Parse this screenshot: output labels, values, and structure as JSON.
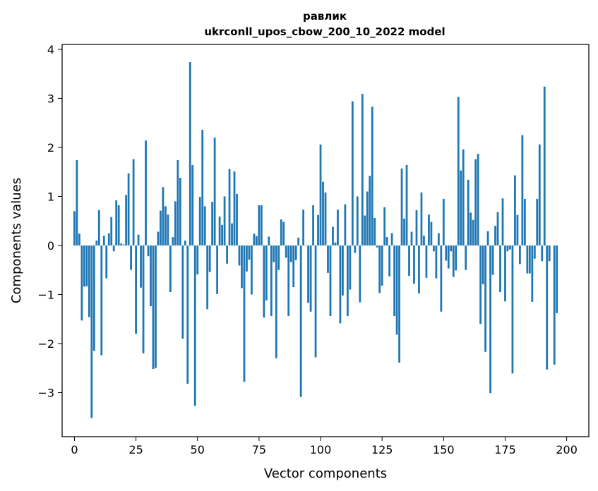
{
  "chart_data": {
    "type": "bar",
    "title": "равлик",
    "subtitle": "ukrconll_upos_cbow_200_10_2022 model",
    "xlabel": "Vector components",
    "ylabel": "Components values",
    "xlim": [
      -5,
      209
    ],
    "ylim": [
      -3.9,
      4.1
    ],
    "xticks": [
      0,
      25,
      50,
      75,
      100,
      125,
      150,
      175,
      200
    ],
    "xtick_labels": [
      "0",
      "25",
      "50",
      "75",
      "100",
      "125",
      "150",
      "175",
      "200"
    ],
    "yticks": [
      -3,
      -2,
      -1,
      0,
      1,
      2,
      3,
      4
    ],
    "ytick_labels": [
      "−3",
      "−2",
      "−1",
      "0",
      "1",
      "2",
      "3",
      "4"
    ],
    "grid": false,
    "bar_color": "#1f77b4",
    "values": [
      0.7,
      1.74,
      0.24,
      -1.53,
      -0.84,
      -0.83,
      -1.46,
      -3.52,
      -2.15,
      0.1,
      0.72,
      -2.24,
      0.2,
      -0.67,
      0.25,
      0.58,
      -0.12,
      0.92,
      0.82,
      0.04,
      0.02,
      1.03,
      1.47,
      -0.5,
      1.76,
      -1.8,
      0.22,
      -0.86,
      -2.2,
      2.14,
      -0.22,
      -1.24,
      -2.52,
      -2.5,
      0.28,
      0.71,
      1.19,
      0.8,
      0.63,
      -0.95,
      0.17,
      0.9,
      1.74,
      1.38,
      -1.9,
      0.1,
      -2.82,
      3.74,
      1.64,
      -3.27,
      -0.59,
      0.99,
      2.36,
      0.8,
      -1.3,
      -0.54,
      0.89,
      2.2,
      -0.99,
      0.59,
      0.42,
      1.0,
      -0.37,
      1.56,
      0.45,
      1.51,
      1.05,
      -0.41,
      -0.87,
      -2.78,
      -0.53,
      -0.29,
      -1.0,
      0.24,
      0.19,
      0.82,
      0.82,
      -1.47,
      -1.12,
      0.18,
      -1.44,
      -0.34,
      -2.3,
      -0.5,
      0.53,
      0.48,
      -0.25,
      -1.44,
      -0.34,
      -0.85,
      -0.3,
      0.16,
      -3.09,
      0.73,
      0.01,
      -1.17,
      -1.35,
      0.82,
      -2.28,
      0.62,
      2.06,
      1.3,
      1.08,
      -0.56,
      -1.44,
      0.38,
      0.06,
      0.73,
      -1.59,
      -1.02,
      0.84,
      -1.44,
      -0.9,
      2.94,
      -0.15,
      1.0,
      -1.16,
      3.09,
      0.61,
      1.1,
      1.42,
      2.83,
      0.56,
      -0.04,
      -0.97,
      -0.82,
      0.78,
      0.17,
      -0.63,
      0.25,
      -1.44,
      -1.82,
      -2.39,
      1.57,
      0.55,
      1.64,
      -0.62,
      0.28,
      -0.78,
      0.72,
      -0.98,
      1.08,
      0.2,
      -0.66,
      0.63,
      0.48,
      -0.12,
      -0.67,
      0.25,
      -1.35,
      0.95,
      -0.31,
      -0.47,
      -0.12,
      -0.64,
      -0.51,
      3.03,
      1.53,
      1.96,
      -0.5,
      1.34,
      0.67,
      0.52,
      1.76,
      1.87,
      -1.6,
      -0.79,
      -2.17,
      0.29,
      -3.01,
      -0.6,
      0.4,
      0.68,
      -0.95,
      0.96,
      -1.14,
      -0.12,
      -0.08,
      -2.61,
      1.43,
      0.62,
      -0.38,
      2.25,
      0.95,
      -0.57,
      -0.57,
      -1.15,
      -0.27,
      0.95,
      2.06,
      -0.32,
      3.24,
      -2.53,
      -0.32,
      0.0,
      -2.43,
      -1.38
    ]
  }
}
